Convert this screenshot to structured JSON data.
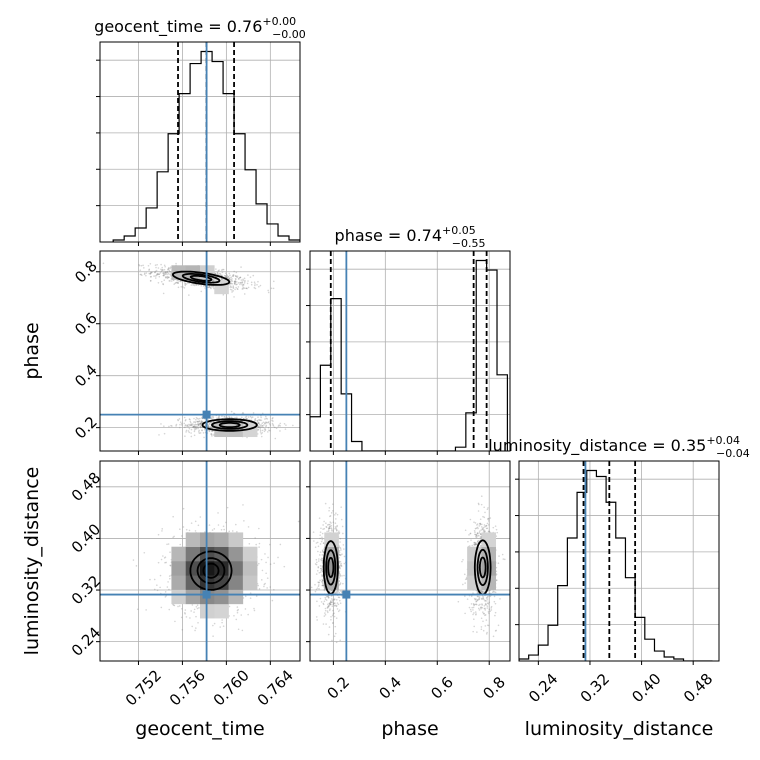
{
  "chart_data": {
    "type": "corner",
    "parameters": [
      "geocent_time",
      "phase",
      "luminosity_distance"
    ],
    "titles": {
      "geocent_time": {
        "text": "geocent_time = 0.76",
        "plus": "+0.00",
        "minus": "−0.00"
      },
      "phase": {
        "text": "phase = 0.74",
        "plus": "+0.05",
        "minus": "−0.55"
      },
      "luminosity_distance": {
        "text": "luminosity_distance = 0.35",
        "plus": "+0.04",
        "minus": "−0.04"
      }
    },
    "ranges": {
      "geocent_time": [
        0.7485,
        0.7667
      ],
      "phase": [
        0.11,
        0.88
      ],
      "luminosity_distance": [
        0.21,
        0.52
      ]
    },
    "ticks": {
      "geocent_time": [
        "0.752",
        "0.756",
        "0.760",
        "0.764"
      ],
      "phase": [
        "0.2",
        "0.4",
        "0.6",
        "0.8"
      ],
      "luminosity_distance": [
        "0.24",
        "0.32",
        "0.40",
        "0.48"
      ]
    },
    "tick_values": {
      "geocent_time": [
        0.752,
        0.756,
        0.76,
        0.764
      ],
      "phase": [
        0.2,
        0.4,
        0.6,
        0.8
      ],
      "luminosity_distance": [
        0.24,
        0.32,
        0.4,
        0.48
      ]
    },
    "truths": {
      "geocent_time": 0.7582,
      "phase": 0.25,
      "luminosity_distance": 0.313
    },
    "quantiles": {
      "geocent_time": [
        0.7556,
        0.7582,
        0.7607
      ],
      "phase": [
        0.19,
        0.74,
        0.79
      ],
      "luminosity_distance": [
        0.31,
        0.35,
        0.39
      ]
    },
    "marginals": {
      "geocent_time": {
        "edges": [
          0.7497,
          0.7507,
          0.7517,
          0.7527,
          0.7537,
          0.7547,
          0.7557,
          0.7567,
          0.7577,
          0.7587,
          0.7597,
          0.7607,
          0.7617,
          0.7627,
          0.7637,
          0.7647,
          0.7657,
          0.7667
        ],
        "counts": [
          1,
          3,
          7,
          17,
          35,
          54,
          74,
          89,
          95,
          90,
          74,
          54,
          36,
          19,
          9,
          3,
          1
        ]
      },
      "phase": {
        "edges": [
          0.11,
          0.15,
          0.19,
          0.23,
          0.27,
          0.31,
          0.35,
          0.39,
          0.43,
          0.47,
          0.51,
          0.55,
          0.59,
          0.63,
          0.67,
          0.71,
          0.75,
          0.79,
          0.83,
          0.87
        ],
        "counts": [
          18,
          45,
          80,
          30,
          5,
          0,
          0,
          0,
          0,
          0,
          0,
          0,
          0,
          0,
          2,
          20,
          100,
          95,
          40
        ]
      },
      "luminosity_distance": {
        "edges": [
          0.21,
          0.225,
          0.24,
          0.255,
          0.27,
          0.285,
          0.3,
          0.315,
          0.33,
          0.345,
          0.36,
          0.375,
          0.39,
          0.405,
          0.42,
          0.435,
          0.45,
          0.465,
          0.48,
          0.495,
          0.51
        ],
        "counts": [
          1,
          3,
          8,
          18,
          38,
          62,
          85,
          96,
          93,
          80,
          62,
          42,
          22,
          11,
          5,
          2,
          1,
          0,
          0,
          0
        ]
      }
    },
    "joint_blobs": [
      {
        "x": "geocent_time",
        "y": "phase",
        "cx": 0.7577,
        "cy": 0.775,
        "sx": 0.0022,
        "sy": 0.022,
        "rho": -0.55,
        "peak": 0.55
      },
      {
        "x": "geocent_time",
        "y": "phase",
        "cx": 0.7603,
        "cy": 0.21,
        "sx": 0.002,
        "sy": 0.018,
        "rho": 0.0,
        "peak": 0.45
      },
      {
        "x": "geocent_time",
        "y": "luminosity_distance",
        "cx": 0.7586,
        "cy": 0.35,
        "sx": 0.0022,
        "sy": 0.035,
        "rho": 0.0,
        "peak": 1.0
      },
      {
        "x": "phase",
        "y": "luminosity_distance",
        "cx": 0.19,
        "cy": 0.355,
        "sx": 0.022,
        "sy": 0.033,
        "rho": 0.0,
        "peak": 0.45
      },
      {
        "x": "phase",
        "y": "luminosity_distance",
        "cx": 0.775,
        "cy": 0.355,
        "sx": 0.026,
        "sy": 0.036,
        "rho": 0.0,
        "peak": 0.55
      }
    ],
    "contour_levels": [
      0.3,
      0.6,
      0.85
    ],
    "grid": true,
    "colors": {
      "hist": "#000000",
      "truth": "#4682b4",
      "quantile": "#000000",
      "scatter": "#888888",
      "grid": "#b0b0b0"
    }
  }
}
